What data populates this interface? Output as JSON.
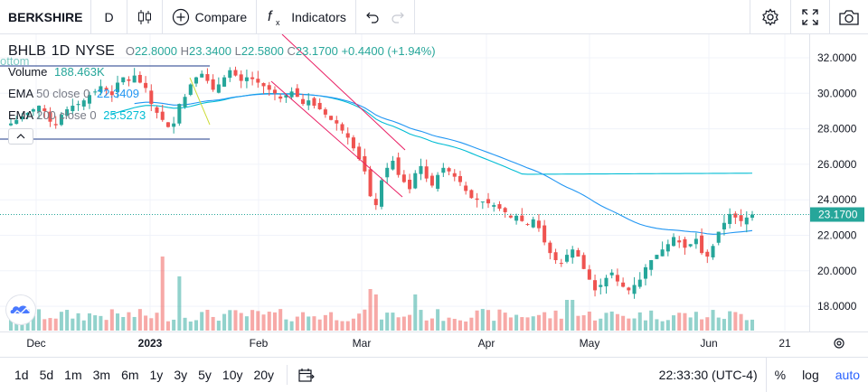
{
  "toolbar": {
    "symbol": "BERKSHIRE",
    "interval": "D",
    "compare_label": "Compare",
    "indicators_label": "Indicators"
  },
  "legend": {
    "symbol": "BHLB",
    "interval": "1D",
    "exchange": "NYSE",
    "open_label": "O",
    "open": "22.8000",
    "high_label": "H",
    "high": "23.3400",
    "low_label": "L",
    "low": "22.5800",
    "close_label": "C",
    "close": "23.1700",
    "change": "+0.4400 (+1.94%)"
  },
  "indicators": {
    "volume_label": "Volume",
    "volume_value": "188.463K",
    "ema50_label": "EMA",
    "ema50_params": "50 close 0",
    "ema50_value": "22.3409",
    "ema200_label": "EMA",
    "ema200_params": "200 close 0",
    "ema200_value": "25.5273",
    "partial_text": "ottom"
  },
  "price_axis": {
    "ticks": [
      "32.0000",
      "30.0000",
      "28.0000",
      "26.0000",
      "24.0000",
      "22.0000",
      "20.0000",
      "18.0000"
    ],
    "last_price": "23.1700"
  },
  "time_axis": {
    "labels": [
      "Dec",
      "2023",
      "Feb",
      "Mar",
      "Apr",
      "May",
      "Jun",
      "21"
    ]
  },
  "bottom": {
    "ranges": [
      "1d",
      "5d",
      "1m",
      "3m",
      "6m",
      "1y",
      "3y",
      "5y",
      "10y",
      "20y"
    ],
    "clock": "22:33:30 (UTC-4)",
    "percent_label": "%",
    "log_label": "log",
    "auto_label": "auto"
  },
  "colors": {
    "up": "#26a69a",
    "down": "#ef5350",
    "ema50": "#2196f3",
    "ema200": "#00bcd4",
    "trendline": "#e91e63",
    "grid": "#f0f3fa"
  },
  "chart_data": {
    "type": "candlestick",
    "y_range": [
      16.8,
      33.0
    ],
    "closes": [
      28.3,
      28.5,
      28.7,
      28.9,
      29.1,
      29.3,
      29.0,
      28.4,
      28.2,
      28.8,
      29.1,
      29.3,
      29.4,
      29.6,
      29.9,
      30.1,
      30.4,
      30.2,
      29.9,
      30.6,
      30.9,
      30.7,
      31.0,
      30.6,
      30.3,
      29.4,
      28.9,
      28.5,
      28.1,
      28.3,
      29.4,
      29.8,
      30.5,
      30.9,
      31.1,
      30.7,
      30.2,
      30.5,
      30.9,
      31.3,
      31.0,
      30.7,
      30.9,
      30.8,
      30.6,
      30.4,
      30.2,
      30.0,
      29.7,
      29.9,
      30.1,
      29.8,
      29.4,
      29.6,
      29.3,
      29.1,
      28.8,
      28.5,
      28.3,
      27.9,
      27.5,
      26.9,
      26.3,
      25.6,
      24.2,
      23.7,
      25.1,
      25.8,
      26.2,
      25.4,
      25.0,
      24.6,
      25.5,
      25.9,
      25.2,
      24.8,
      25.4,
      25.8,
      25.6,
      25.3,
      25.0,
      24.5,
      24.1,
      24.0,
      23.9,
      23.8,
      23.7,
      23.5,
      23.3,
      23.0,
      23.1,
      22.8,
      22.6,
      22.9,
      22.4,
      21.6,
      21.0,
      20.6,
      20.4,
      20.9,
      21.2,
      20.8,
      20.1,
      19.5,
      18.9,
      19.2,
      19.6,
      19.9,
      19.4,
      19.1,
      18.9,
      19.2,
      19.5,
      20.2,
      20.6,
      20.9,
      21.2,
      21.5,
      21.9,
      21.6,
      21.3,
      21.5,
      21.8,
      21.0,
      20.8,
      21.4,
      22.2,
      22.7,
      23.2,
      23.0,
      22.8,
      23.0,
      23.17
    ],
    "ema50_start": [
      0,
      28.5
    ],
    "ema50_value": 22.3409,
    "ema200_value": 25.5273,
    "volume_peak": "sample"
  }
}
